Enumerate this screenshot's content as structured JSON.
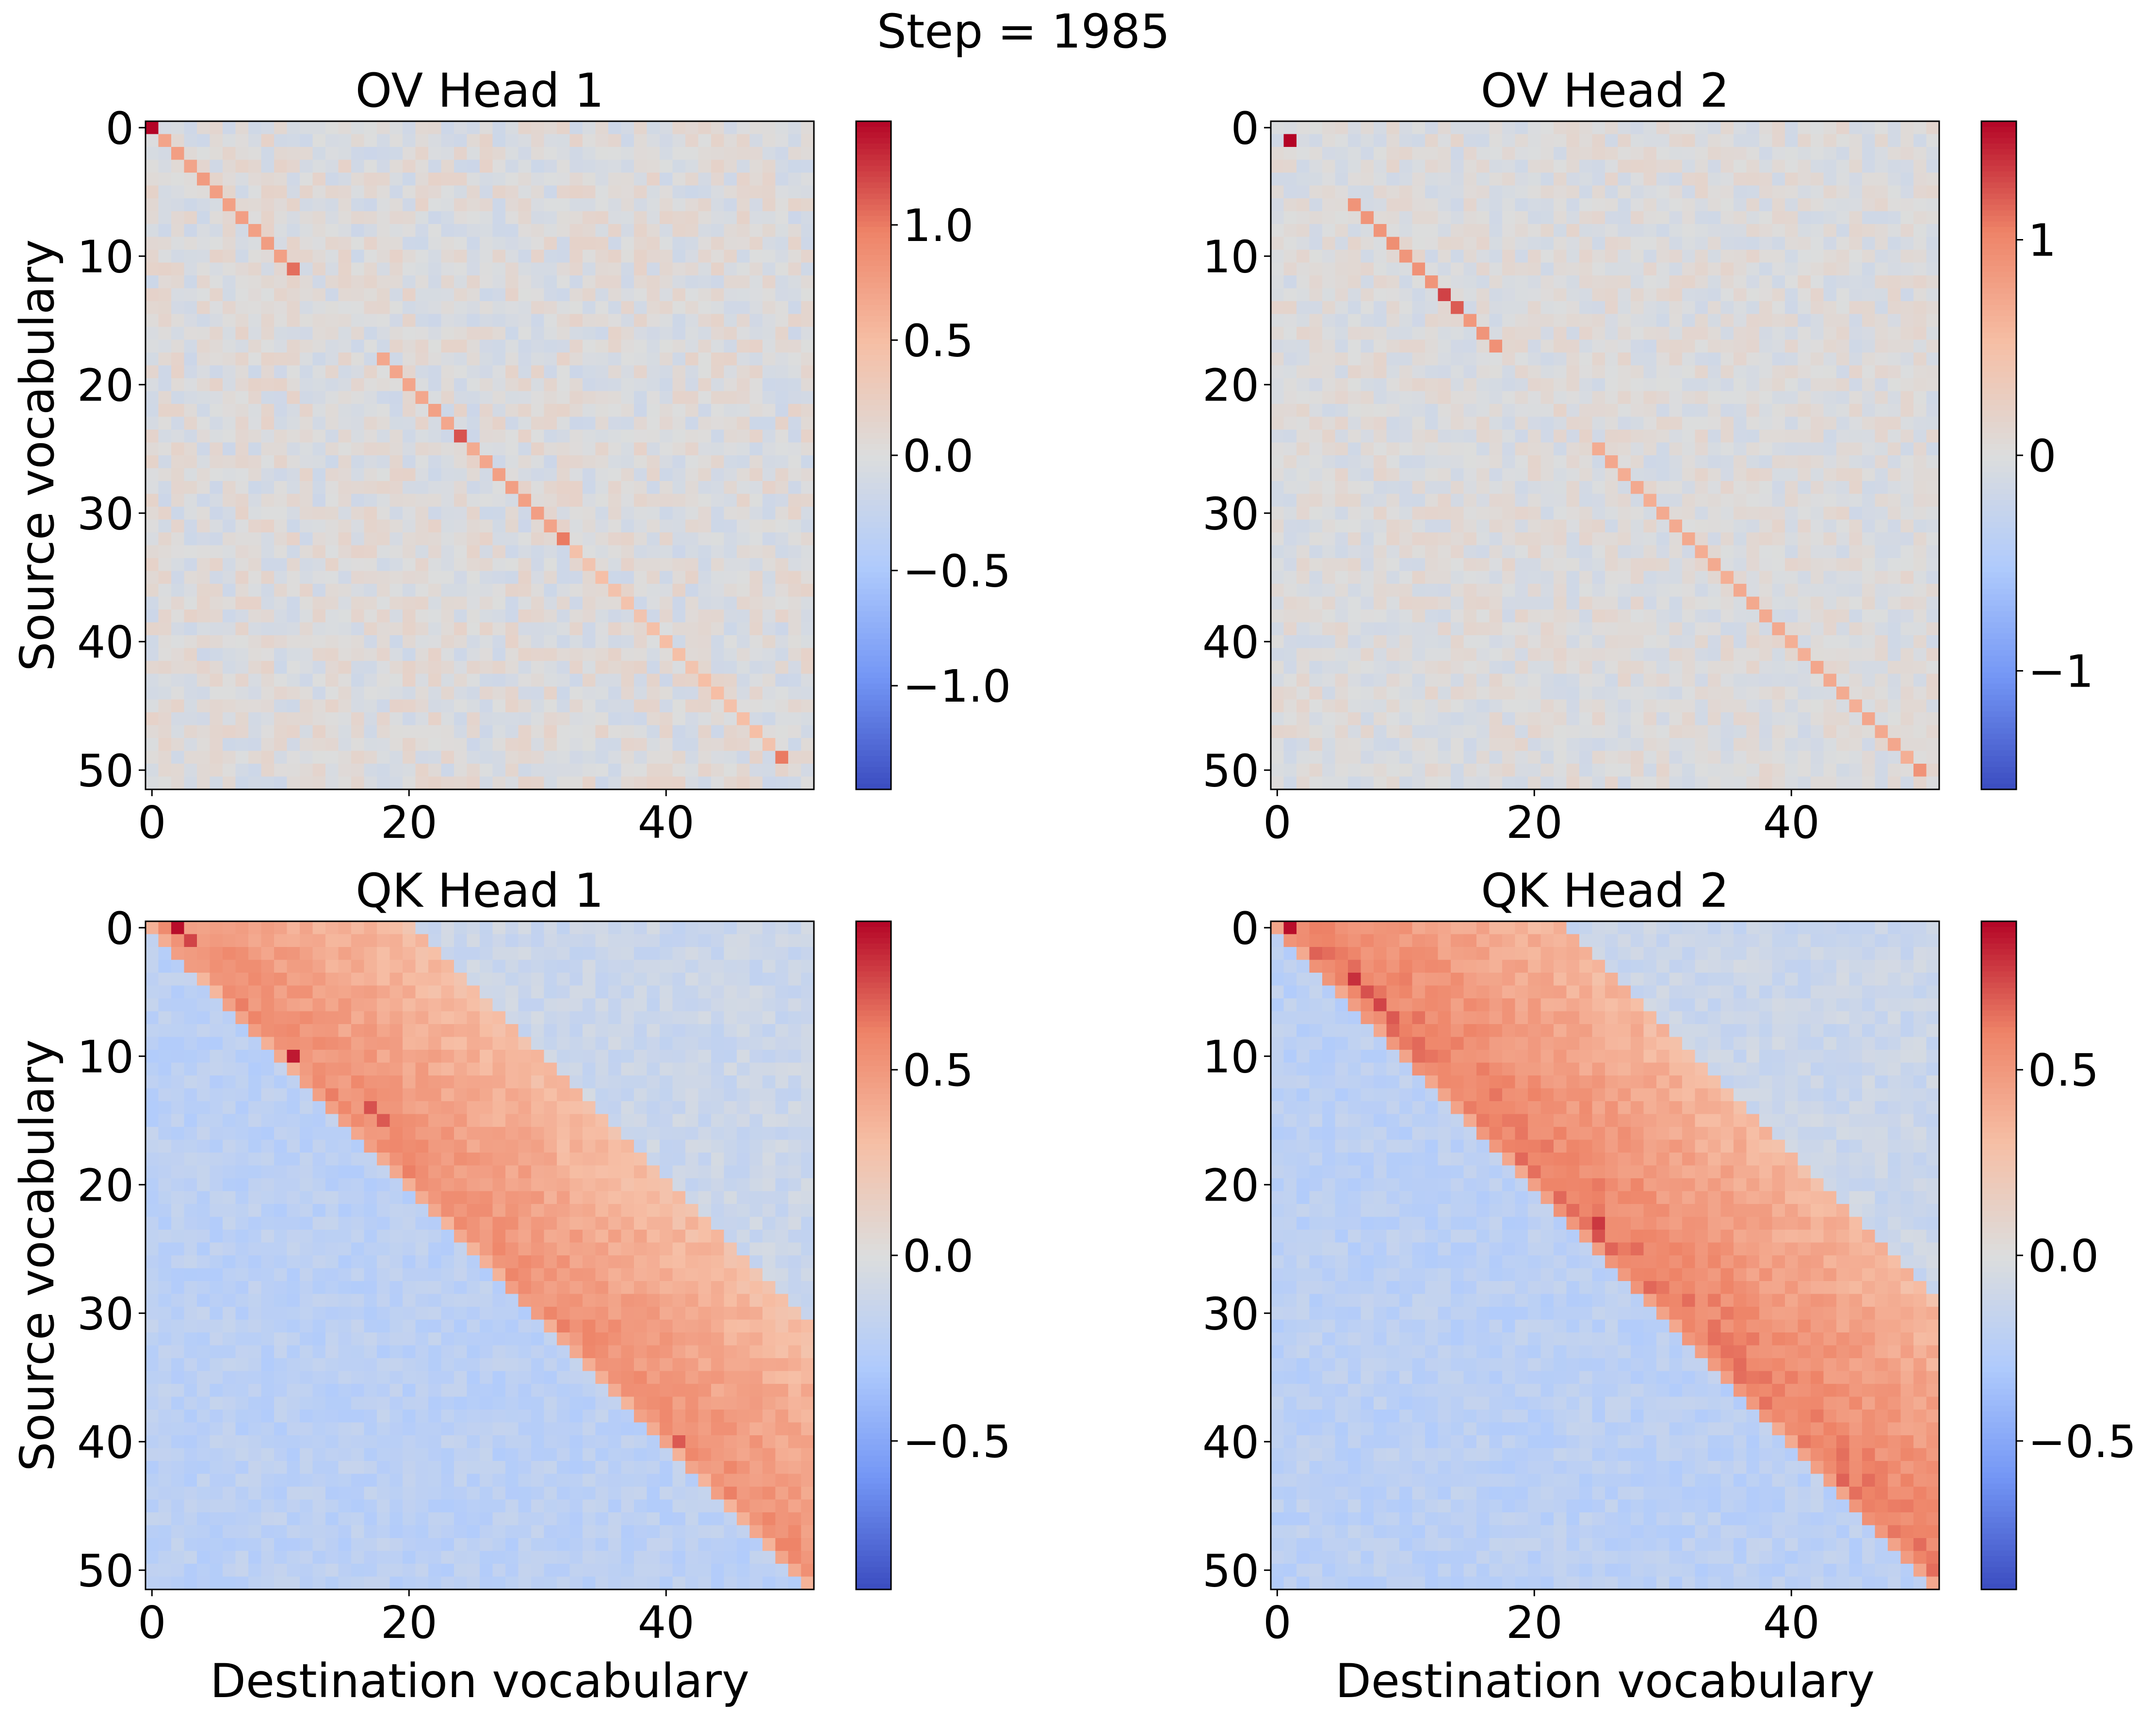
{
  "figure": {
    "suptitle": "Step = 1985",
    "colormap": {
      "name": "coolwarm",
      "stops": [
        "#3b4cc0",
        "#7396f5",
        "#b0cbfc",
        "#dcdddd",
        "#f6bfa6",
        "#ee8468",
        "#b40426"
      ]
    }
  },
  "chart_data": [
    {
      "type": "heatmap",
      "title": "OV Head 1",
      "xlabel": "",
      "ylabel": "Source vocabulary",
      "n": 52,
      "xticks": [
        "0",
        "20",
        "40"
      ],
      "yticks": [
        "0",
        "10",
        "20",
        "30",
        "40",
        "50"
      ],
      "clim": [
        -1.45,
        1.45
      ],
      "colorbar_ticks": [
        {
          "value": 1.0,
          "label": "1.0"
        },
        {
          "value": 0.5,
          "label": "0.5"
        },
        {
          "value": 0.0,
          "label": "0.0"
        },
        {
          "value": -0.5,
          "label": "−0.5"
        },
        {
          "value": -1.0,
          "label": "−1.0"
        }
      ],
      "pattern": "diagonal",
      "noise": 0.18,
      "seed": 11,
      "diagonal": [
        {
          "from": 0,
          "to": 11,
          "value": 0.75
        },
        {
          "from": 12,
          "to": 17,
          "value": 0.05
        },
        {
          "from": 18,
          "to": 32,
          "value": 0.7
        },
        {
          "from": 33,
          "to": 49,
          "value": 0.45
        }
      ],
      "highlights": [
        {
          "row": 0,
          "col": 0,
          "value": 1.45
        },
        {
          "row": 11,
          "col": 11,
          "value": 1.05
        },
        {
          "row": 24,
          "col": 24,
          "value": 1.15
        },
        {
          "row": 32,
          "col": 32,
          "value": 1.0
        },
        {
          "row": 49,
          "col": 49,
          "value": 1.0
        }
      ]
    },
    {
      "type": "heatmap",
      "title": "OV Head 2",
      "xlabel": "",
      "ylabel": "",
      "n": 52,
      "xticks": [
        "0",
        "20",
        "40"
      ],
      "yticks": [
        "0",
        "10",
        "20",
        "30",
        "40",
        "50"
      ],
      "clim": [
        -1.55,
        1.55
      ],
      "colorbar_ticks": [
        {
          "value": 1,
          "label": "1"
        },
        {
          "value": 0,
          "label": "0"
        },
        {
          "value": -1,
          "label": "−1"
        }
      ],
      "pattern": "diagonal",
      "noise": 0.16,
      "seed": 23,
      "diagonal": [
        {
          "from": 0,
          "to": 5,
          "value": 0.0
        },
        {
          "from": 6,
          "to": 17,
          "value": 0.9
        },
        {
          "from": 18,
          "to": 24,
          "value": 0.15
        },
        {
          "from": 25,
          "to": 50,
          "value": 0.7
        }
      ],
      "highlights": [
        {
          "row": 1,
          "col": 1,
          "value": 1.55
        },
        {
          "row": 13,
          "col": 13,
          "value": 1.3
        },
        {
          "row": 14,
          "col": 14,
          "value": 1.2
        },
        {
          "row": 50,
          "col": 50,
          "value": 0.9
        }
      ]
    },
    {
      "type": "heatmap",
      "title": "QK Head 1",
      "xlabel": "Destination vocabulary",
      "ylabel": "Source vocabulary",
      "n": 52,
      "xticks": [
        "0",
        "20",
        "40"
      ],
      "yticks": [
        "0",
        "10",
        "20",
        "30",
        "40",
        "50"
      ],
      "clim": [
        -0.9,
        0.9
      ],
      "colorbar_ticks": [
        {
          "value": 0.5,
          "label": "0.5"
        },
        {
          "value": 0.0,
          "label": "0.0"
        },
        {
          "value": -0.5,
          "label": "−0.5"
        }
      ],
      "pattern": "band",
      "noise": 0.07,
      "seed": 37,
      "band_width": 20,
      "band_peak": 0.48,
      "lower_value": -0.22,
      "upper_value": -0.12,
      "highlights": [
        {
          "row": 0,
          "col": 2,
          "value": 0.88
        },
        {
          "row": 1,
          "col": 3,
          "value": 0.75
        },
        {
          "row": 10,
          "col": 11,
          "value": 0.85
        },
        {
          "row": 14,
          "col": 17,
          "value": 0.72
        },
        {
          "row": 15,
          "col": 18,
          "value": 0.7
        },
        {
          "row": 40,
          "col": 41,
          "value": 0.7
        },
        {
          "row": 48,
          "col": 49,
          "value": 0.6
        }
      ]
    },
    {
      "type": "heatmap",
      "title": "QK Head 2",
      "xlabel": "Destination vocabulary",
      "ylabel": "",
      "n": 52,
      "xticks": [
        "0",
        "20",
        "40"
      ],
      "yticks": [
        "0",
        "10",
        "20",
        "30",
        "40",
        "50"
      ],
      "clim": [
        -0.9,
        0.9
      ],
      "colorbar_ticks": [
        {
          "value": 0.5,
          "label": "0.5"
        },
        {
          "value": 0.0,
          "label": "0.0"
        },
        {
          "value": -0.5,
          "label": "−0.5"
        }
      ],
      "pattern": "band",
      "noise": 0.07,
      "seed": 53,
      "band_width": 22,
      "band_peak": 0.55,
      "lower_value": -0.22,
      "upper_value": -0.12,
      "highlights": [
        {
          "row": 0,
          "col": 1,
          "value": 0.88
        },
        {
          "row": 4,
          "col": 6,
          "value": 0.8
        },
        {
          "row": 5,
          "col": 7,
          "value": 0.72
        },
        {
          "row": 6,
          "col": 8,
          "value": 0.75
        },
        {
          "row": 7,
          "col": 9,
          "value": 0.7
        },
        {
          "row": 23,
          "col": 25,
          "value": 0.78
        },
        {
          "row": 24,
          "col": 25,
          "value": 0.72
        }
      ]
    }
  ]
}
